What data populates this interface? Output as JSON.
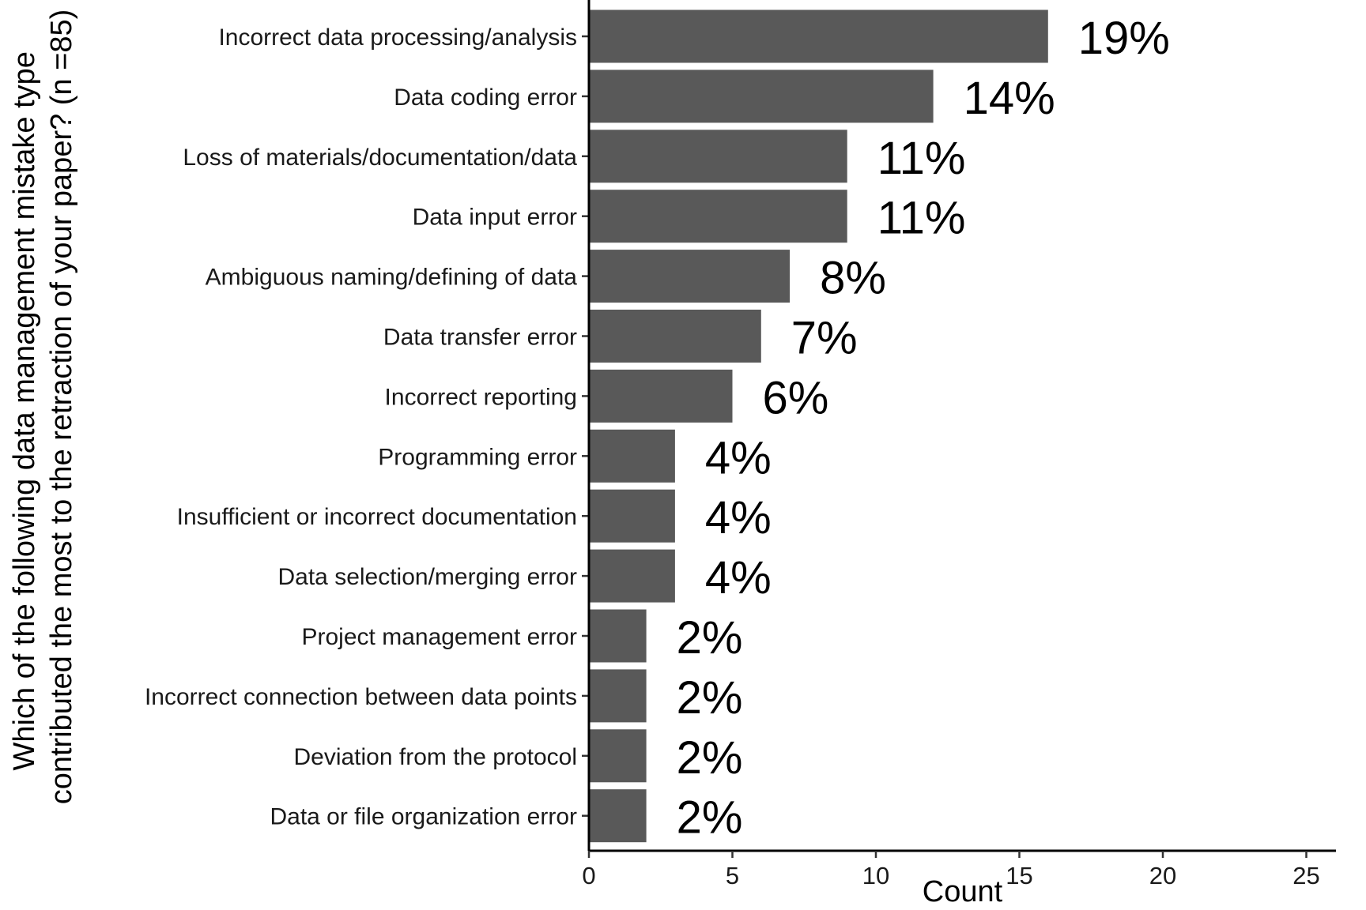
{
  "chart_data": {
    "type": "bar",
    "orientation": "horizontal",
    "categories": [
      "Incorrect data processing/analysis",
      "Data coding error",
      "Loss of materials/documentation/data",
      "Data input error",
      "Ambiguous naming/defining of data",
      "Data transfer error",
      "Incorrect reporting",
      "Programming error",
      "Insufficient or incorrect documentation",
      "Data selection/merging error",
      "Project management error",
      "Incorrect connection between data points",
      "Deviation from the protocol",
      "Data or file organization error"
    ],
    "values": [
      16,
      12,
      9,
      9,
      7,
      6,
      5,
      3,
      3,
      3,
      2,
      2,
      2,
      2
    ],
    "data_labels": [
      "19%",
      "14%",
      "11%",
      "11%",
      "8%",
      "7%",
      "6%",
      "4%",
      "4%",
      "4%",
      "2%",
      "2%",
      "2%",
      "2%"
    ],
    "xlabel": "Count",
    "ylabel_lines": [
      "Which of the following data management mistake type",
      "contributed the most to the retraction of your paper? (n =85)"
    ],
    "xlim": [
      0,
      26
    ],
    "xticks": [
      0,
      5,
      10,
      15,
      20,
      25
    ],
    "bar_color": "#595959",
    "grid": false,
    "legend": "none"
  }
}
